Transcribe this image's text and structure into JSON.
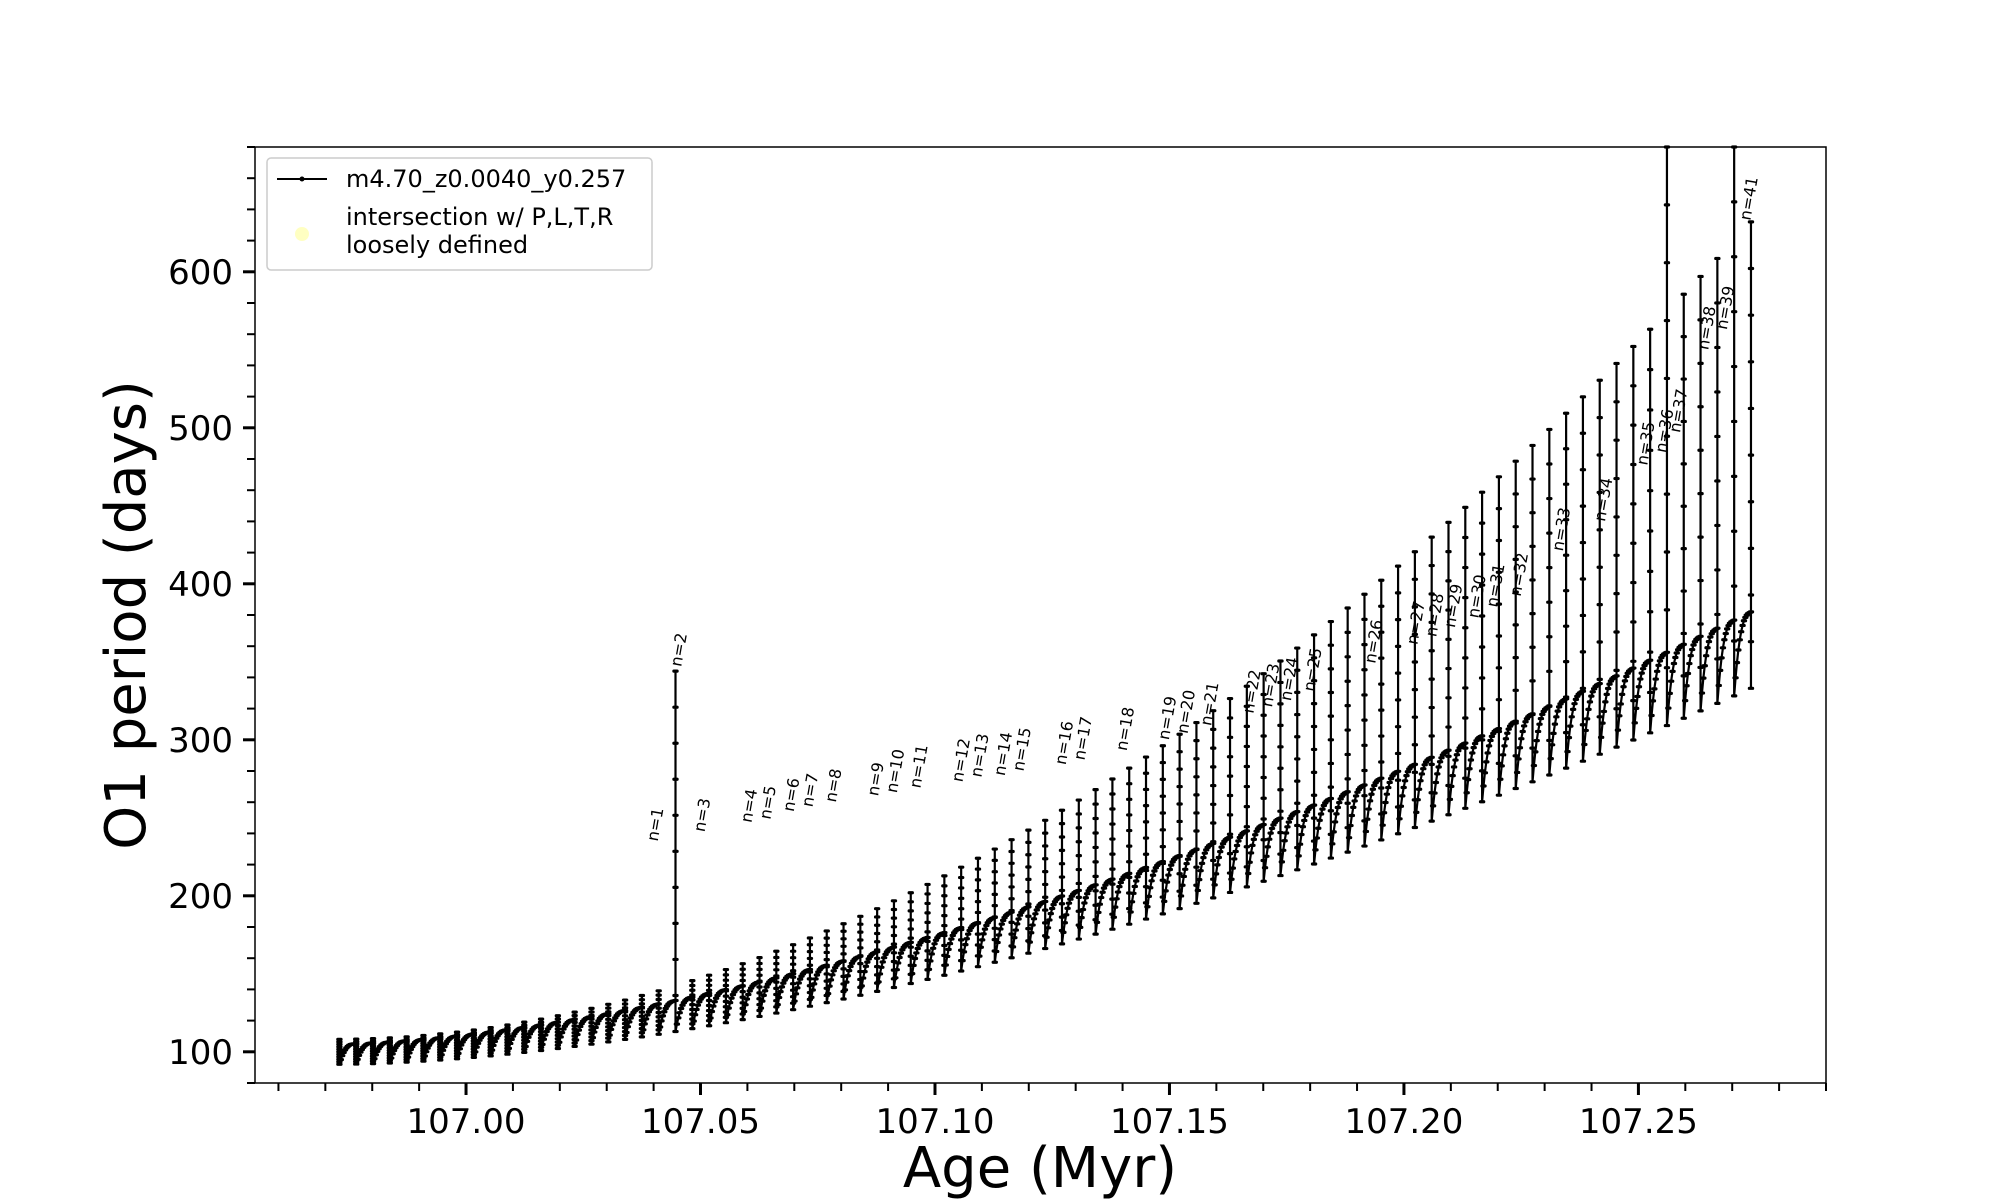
{
  "chart_data": {
    "type": "line",
    "xlabel": "Age (Myr)",
    "ylabel": "O1 period (days)",
    "xlim": [
      106.955,
      107.29
    ],
    "ylim": [
      80,
      680
    ],
    "xticks_major": [
      107.0,
      107.05,
      107.1,
      107.15,
      107.2,
      107.25
    ],
    "xtick_labels": [
      "107.00",
      "107.05",
      "107.10",
      "107.15",
      "107.20",
      "107.25"
    ],
    "yticks_major": [
      100,
      200,
      300,
      400,
      500,
      600
    ],
    "ytick_labels": [
      "100",
      "200",
      "300",
      "400",
      "500",
      "600"
    ],
    "legend": {
      "location": "upper-left",
      "entries": [
        {
          "label": "m4.70_z0.0040_y0.257",
          "marker": "line-dot",
          "color": "#000000"
        },
        {
          "label_lines": [
            "intersection w/ P,L,T,R",
            "loosely defined"
          ],
          "marker": "circle",
          "color": "#ffff99"
        }
      ]
    },
    "series": [
      {
        "name": "m4.70_z0.0040_y0.257",
        "color": "#000000",
        "pulses": {
          "age_start": 106.973,
          "age_end": 107.274,
          "count": 85,
          "baseline_start": 105,
          "baseline_end": 382,
          "trough_start": 92,
          "trough_end": 333,
          "spike_start": 108,
          "spike_end": 632,
          "spike_growth": 1.1
        },
        "tall_spikes": [
          {
            "age": 107.045,
            "peak": 344
          },
          {
            "age": 107.256,
            "peak": 680
          },
          {
            "age": 107.2705,
            "peak": 680
          }
        ]
      }
    ],
    "annotations": [
      {
        "text": "n=1",
        "x": 107.04,
        "y": 232
      },
      {
        "text": "n=2",
        "x": 107.045,
        "y": 344
      },
      {
        "text": "n=3",
        "x": 107.05,
        "y": 238
      },
      {
        "text": "n=4",
        "x": 107.06,
        "y": 244
      },
      {
        "text": "n=5",
        "x": 107.064,
        "y": 246
      },
      {
        "text": "n=6",
        "x": 107.069,
        "y": 251
      },
      {
        "text": "n=7",
        "x": 107.073,
        "y": 254
      },
      {
        "text": "n=8",
        "x": 107.078,
        "y": 257
      },
      {
        "text": "n=9",
        "x": 107.087,
        "y": 261
      },
      {
        "text": "n=10",
        "x": 107.091,
        "y": 263
      },
      {
        "text": "n=11",
        "x": 107.096,
        "y": 266
      },
      {
        "text": "n=12",
        "x": 107.105,
        "y": 270
      },
      {
        "text": "n=13",
        "x": 107.109,
        "y": 273
      },
      {
        "text": "n=14",
        "x": 107.114,
        "y": 274
      },
      {
        "text": "n=15",
        "x": 107.118,
        "y": 277
      },
      {
        "text": "n=16",
        "x": 107.127,
        "y": 281
      },
      {
        "text": "n=17",
        "x": 107.131,
        "y": 284
      },
      {
        "text": "n=18",
        "x": 107.14,
        "y": 290
      },
      {
        "text": "n=19",
        "x": 107.149,
        "y": 297
      },
      {
        "text": "n=20",
        "x": 107.153,
        "y": 301
      },
      {
        "text": "n=21",
        "x": 107.158,
        "y": 306
      },
      {
        "text": "n=22",
        "x": 107.167,
        "y": 314
      },
      {
        "text": "n=23",
        "x": 107.171,
        "y": 318
      },
      {
        "text": "n=24",
        "x": 107.175,
        "y": 322
      },
      {
        "text": "n=25",
        "x": 107.18,
        "y": 328
      },
      {
        "text": "n=26",
        "x": 107.193,
        "y": 346
      },
      {
        "text": "n=27",
        "x": 107.202,
        "y": 358
      },
      {
        "text": "n=28",
        "x": 107.206,
        "y": 363
      },
      {
        "text": "n=29",
        "x": 107.21,
        "y": 369
      },
      {
        "text": "n=30",
        "x": 107.215,
        "y": 375
      },
      {
        "text": "n=31",
        "x": 107.219,
        "y": 382
      },
      {
        "text": "n=32",
        "x": 107.224,
        "y": 389
      },
      {
        "text": "n=33",
        "x": 107.233,
        "y": 418
      },
      {
        "text": "n=34",
        "x": 107.242,
        "y": 437
      },
      {
        "text": "n=35",
        "x": 107.251,
        "y": 473
      },
      {
        "text": "n=36",
        "x": 107.255,
        "y": 481
      },
      {
        "text": "n=37",
        "x": 107.258,
        "y": 494
      },
      {
        "text": "n=38",
        "x": 107.264,
        "y": 547
      },
      {
        "text": "n=39",
        "x": 107.268,
        "y": 560
      },
      {
        "text": "n=41",
        "x": 107.273,
        "y": 630
      }
    ]
  }
}
